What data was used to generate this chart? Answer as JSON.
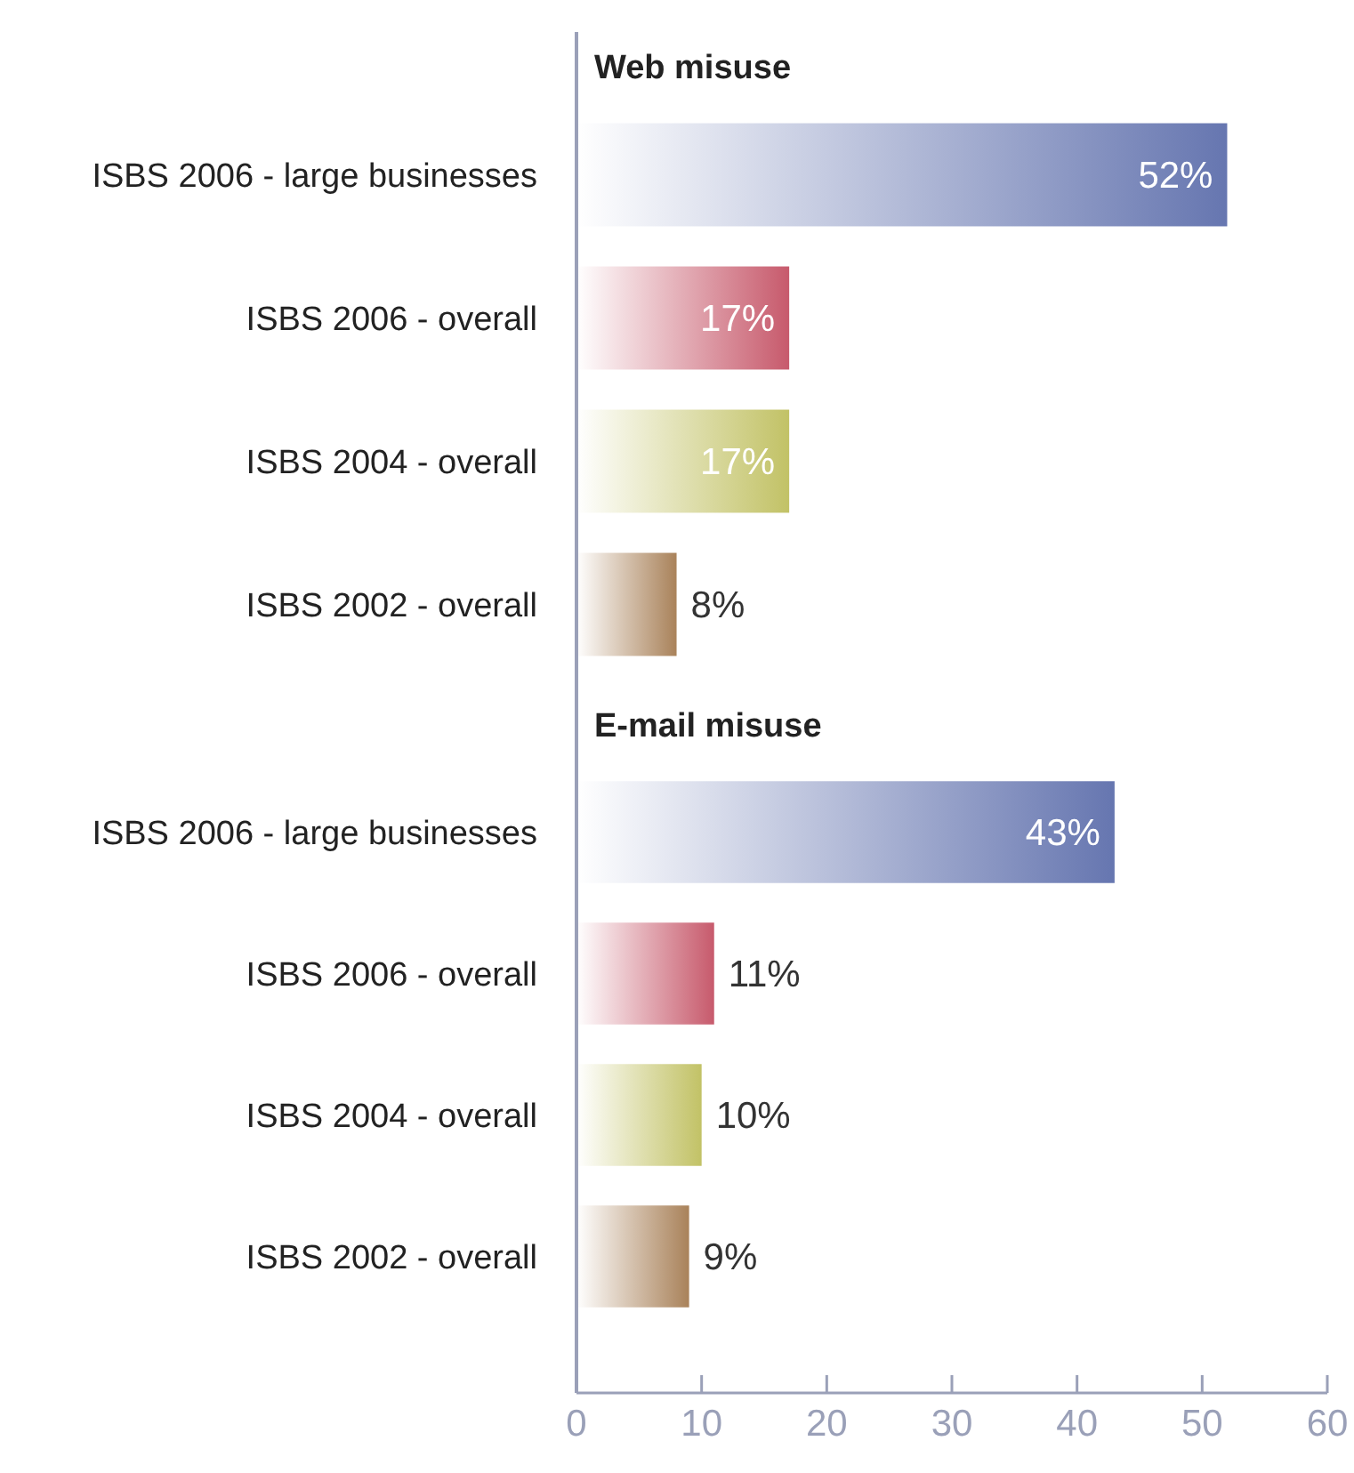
{
  "chart_data": [
    {
      "type": "bar",
      "orientation": "horizontal",
      "title": "Web misuse",
      "categories": [
        "ISBS 2006 - large businesses",
        "ISBS 2006 - overall",
        "ISBS 2004 - overall",
        "ISBS 2002 - overall"
      ],
      "values": [
        52,
        17,
        17,
        8
      ],
      "value_labels": [
        "52%",
        "17%",
        "17%",
        "8%"
      ],
      "colors": [
        "#6676b0",
        "#c75a6c",
        "#c2c266",
        "#a9825a"
      ],
      "xlim": [
        0,
        60
      ],
      "tick_labels": "y"
    },
    {
      "type": "bar",
      "orientation": "horizontal",
      "title": "E-mail misuse",
      "categories": [
        "ISBS 2006 - large businesses",
        "ISBS 2006 - overall",
        "ISBS 2004 - overall",
        "ISBS 2002 - overall"
      ],
      "values": [
        43,
        11,
        10,
        9
      ],
      "value_labels": [
        "43%",
        "11%",
        "10%",
        "9%"
      ],
      "colors": [
        "#6676b0",
        "#c75a6c",
        "#c2c266",
        "#a9825a"
      ],
      "xlim": [
        0,
        60
      ],
      "xticks": [
        0,
        10,
        20,
        30,
        40,
        50,
        60
      ]
    }
  ]
}
